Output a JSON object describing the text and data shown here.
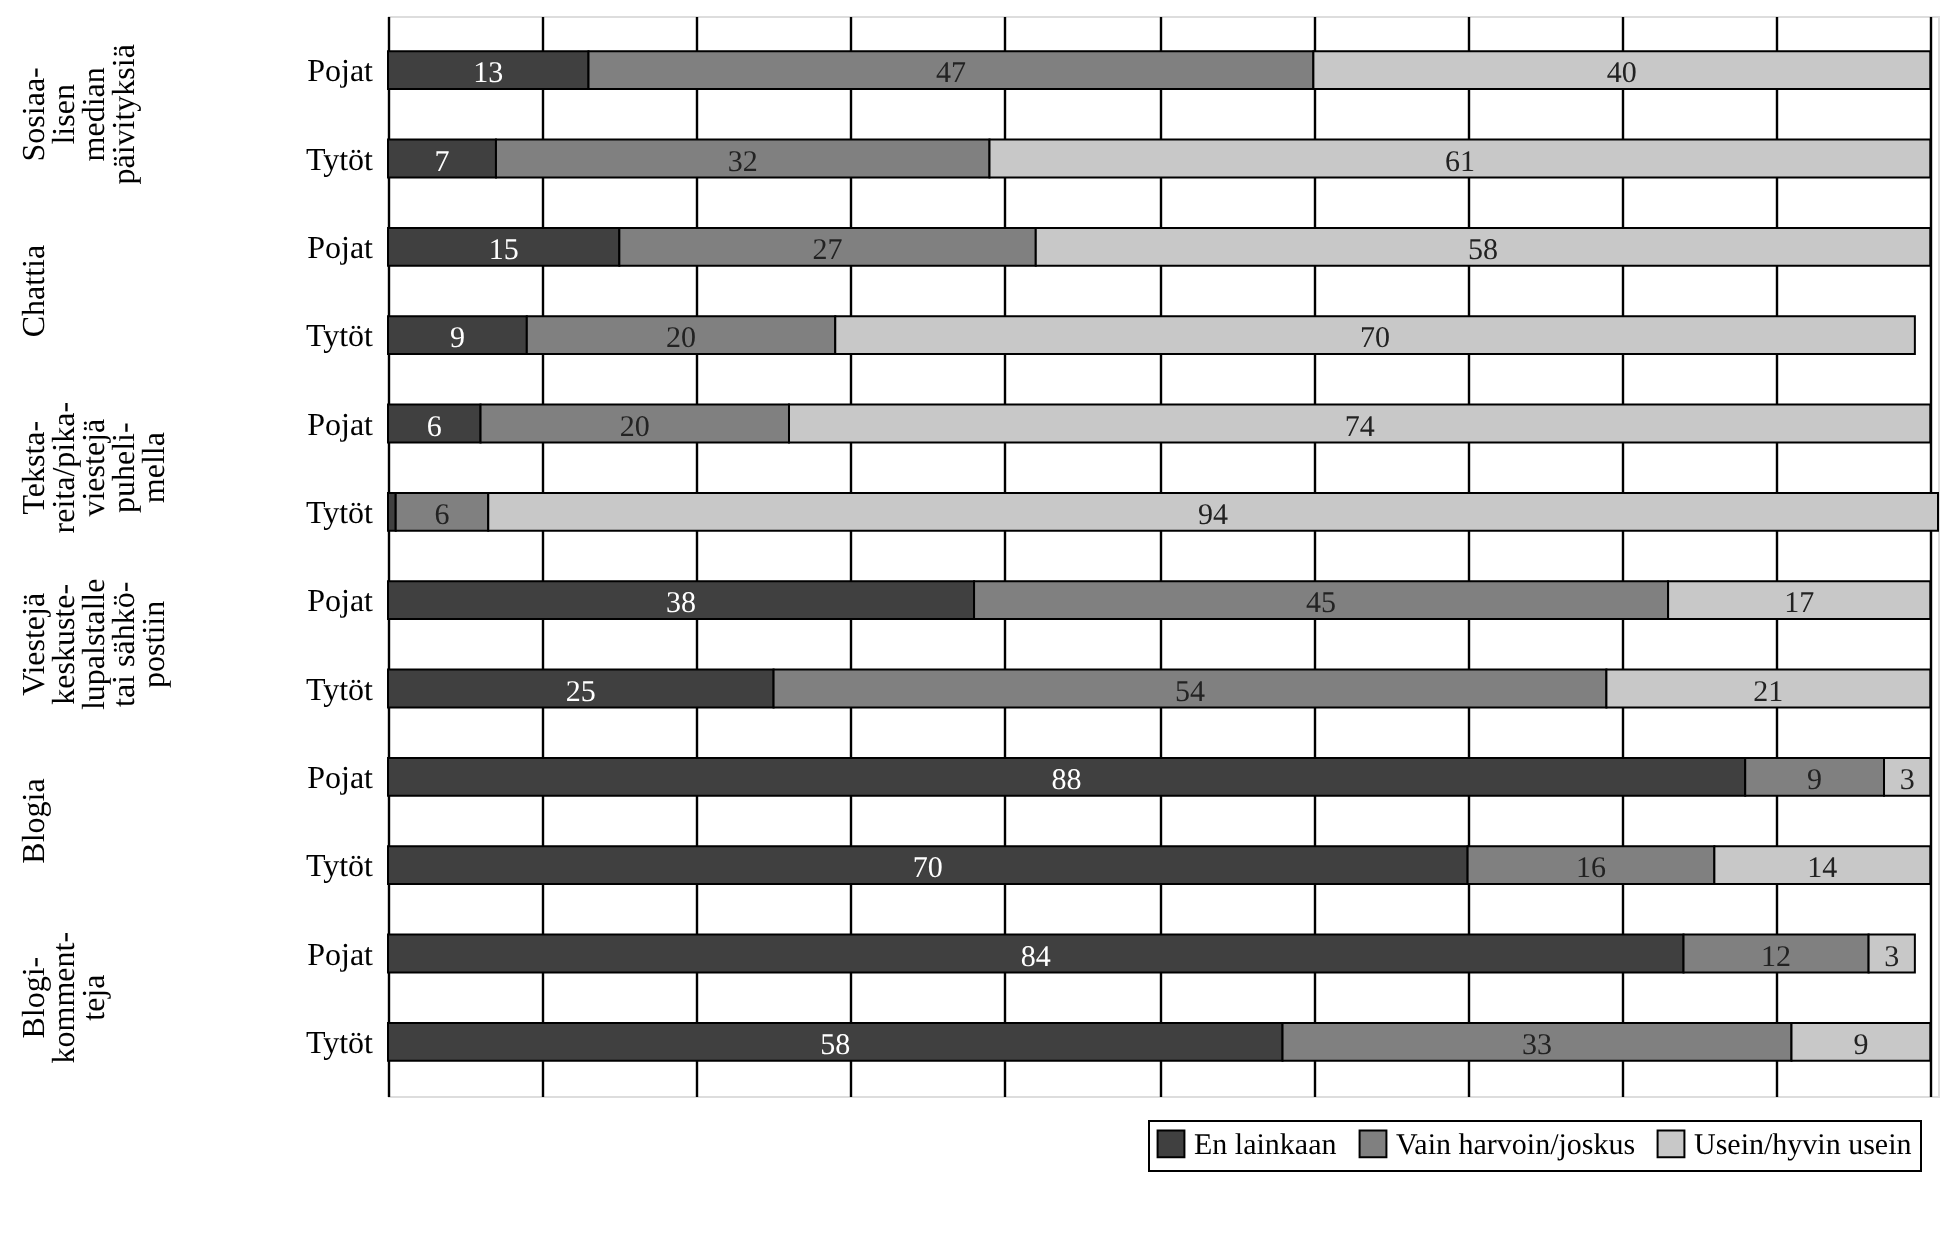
{
  "chart_data": {
    "type": "bar",
    "orientation": "horizontal",
    "stacked": true,
    "data_labels": true,
    "categories": [
      "Pojat",
      "Tytöt",
      "Pojat",
      "Tytöt",
      "Pojat",
      "Tytöt",
      "Pojat",
      "Tytöt",
      "Pojat",
      "Tytöt",
      "Pojat",
      "Tytöt"
    ],
    "series": [
      {
        "name": "En lainkaan",
        "color": "#404040",
        "values": [
          13,
          7,
          15,
          9,
          6,
          0.5,
          38,
          25,
          88,
          70,
          84,
          58
        ],
        "value_labels": [
          "13",
          "7",
          "15",
          "9",
          "6",
          null,
          "38",
          "25",
          "88",
          "70",
          "84",
          "58"
        ]
      },
      {
        "name": "Vain harvoin/joskus",
        "color": "#808080",
        "values": [
          47,
          32,
          27,
          20,
          20,
          6,
          45,
          54,
          9,
          16,
          12,
          33
        ]
      },
      {
        "name": "Usein/hyvin usein",
        "color": "#c8c8c8",
        "values": [
          40,
          61,
          58,
          70,
          74,
          94,
          17,
          21,
          3,
          14,
          3,
          9
        ]
      }
    ],
    "annotations": [
      "Sosiaa-\nlisen\nmedian\npäivityksiä",
      "Chattia",
      "Teksta-\nreita/pika-\nviestejä\npuheli-\nmella",
      "Viestejä\nkeskuste-\nlupalstalle\ntai sähkö-\npostiin",
      "Blogia",
      "Blogi-\nkomment-\nteja"
    ],
    "xlim": [
      0,
      100.5
    ],
    "xticks": [
      {
        "value": 0,
        "label": null
      },
      {
        "value": 10,
        "label": null
      },
      {
        "value": 20,
        "label": null
      },
      {
        "value": 30,
        "label": null
      },
      {
        "value": 40,
        "label": null
      },
      {
        "value": 50,
        "label": null
      },
      {
        "value": 60,
        "label": null
      },
      {
        "value": 70,
        "label": null
      },
      {
        "value": 80,
        "label": null
      },
      {
        "value": 90,
        "label": null
      },
      {
        "value": 100,
        "label": null
      }
    ],
    "tick_labels": "y",
    "grid": "x",
    "legend": "bottom right"
  }
}
